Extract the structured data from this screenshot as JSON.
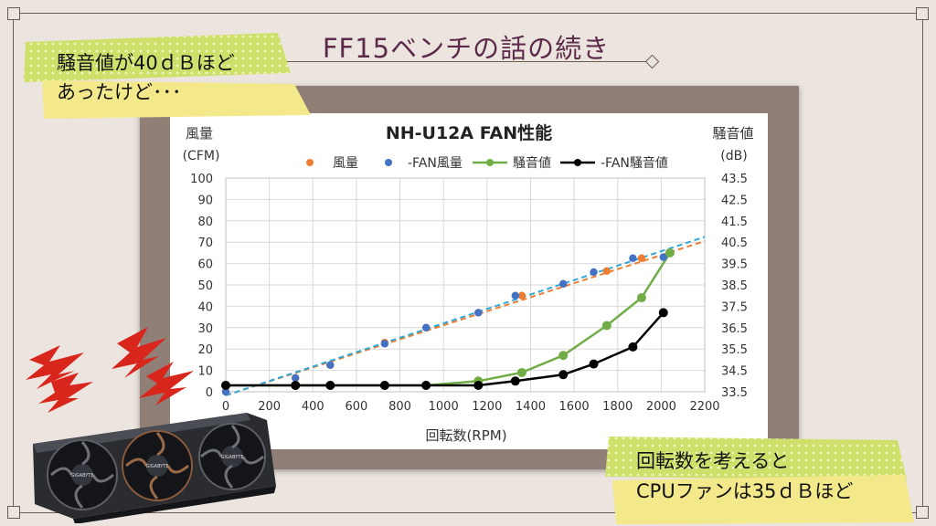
{
  "header": {
    "title": "FF15ベンチの話の続き"
  },
  "notes": {
    "top_left_line1": "騒音値が40ｄＢほど",
    "top_left_line2": "あったけど･･･",
    "bottom_right_line1": "回転数を考えると",
    "bottom_right_line2": "CPUファンは35ｄＢほど"
  },
  "gpu_card": {
    "brand_label": "GIGABYTE"
  },
  "colors": {
    "background": "#ece4de",
    "title": "#5c2a4a",
    "note_highlight": "#cfe06a",
    "series_airflow": "#ed7d31",
    "series_airflow_nofan": "#4472c4",
    "series_noise": "#70ad47",
    "series_noise_nofan": "#000000",
    "trendline": "#2fa8d8"
  },
  "chart_data": {
    "type": "scatter",
    "title": "NH-U12A FAN性能",
    "xlabel": "回転数(RPM)",
    "ylabel_left_line1": "風量",
    "ylabel_left_line2": "(CFM)",
    "ylabel_right_line1": "騒音値",
    "ylabel_right_line2": "(dB)",
    "xlim": [
      0,
      2200
    ],
    "ylim_left": [
      0,
      100
    ],
    "ylim_right": [
      33.5,
      43.5
    ],
    "x_ticks": [
      "0",
      "200",
      "400",
      "600",
      "800",
      "1000",
      "1200",
      "1400",
      "1600",
      "1800",
      "2000",
      "2200"
    ],
    "y_left_ticks": [
      "0",
      "10",
      "20",
      "30",
      "40",
      "50",
      "60",
      "70",
      "80",
      "90",
      "100"
    ],
    "y_right_ticks": [
      "33.5",
      "34.5",
      "35.5",
      "36.5",
      "37.5",
      "38.5",
      "39.5",
      "40.5",
      "41.5",
      "42.5",
      "43.5"
    ],
    "grid": true,
    "legend_position": "top",
    "series": [
      {
        "name": "風量",
        "axis": "left",
        "style": "points",
        "color": "#ed7d31",
        "x": [
          0,
          320,
          480,
          730,
          920,
          1160,
          1360,
          1550,
          1750,
          1910,
          2040
        ],
        "y": [
          0,
          6.5,
          12.5,
          23,
          30,
          37,
          45,
          50.5,
          56.5,
          62.5,
          65
        ]
      },
      {
        "name": "-FAN風量",
        "axis": "left",
        "style": "points",
        "color": "#4472c4",
        "x": [
          0,
          320,
          480,
          730,
          920,
          1160,
          1330,
          1550,
          1690,
          1870,
          2010
        ],
        "y": [
          0,
          6.5,
          12.5,
          22.5,
          30,
          37,
          45,
          50.5,
          56,
          62.5,
          63
        ]
      },
      {
        "name": "騒音値",
        "axis": "right",
        "style": "line",
        "color": "#70ad47",
        "x": [
          0,
          320,
          480,
          730,
          920,
          1160,
          1360,
          1550,
          1750,
          1910,
          2040
        ],
        "y": [
          33.8,
          33.8,
          33.8,
          33.8,
          33.8,
          34.0,
          34.4,
          35.2,
          36.6,
          37.9,
          40.0
        ]
      },
      {
        "name": "-FAN騒音値",
        "axis": "right",
        "style": "line",
        "color": "#000000",
        "x": [
          0,
          320,
          480,
          730,
          920,
          1160,
          1330,
          1550,
          1690,
          1870,
          2010
        ],
        "y": [
          33.8,
          33.8,
          33.8,
          33.8,
          33.8,
          33.8,
          34.0,
          34.3,
          34.8,
          35.6,
          37.2
        ]
      }
    ],
    "trendlines": [
      {
        "of": "風量",
        "color": "#ed7d31",
        "x": [
          0,
          2200
        ],
        "y": [
          -1.7,
          70.5
        ]
      },
      {
        "of": "-FAN風量",
        "color": "#2fa8d8",
        "x": [
          0,
          2200
        ],
        "y": [
          -1.7,
          72.5
        ]
      }
    ]
  }
}
